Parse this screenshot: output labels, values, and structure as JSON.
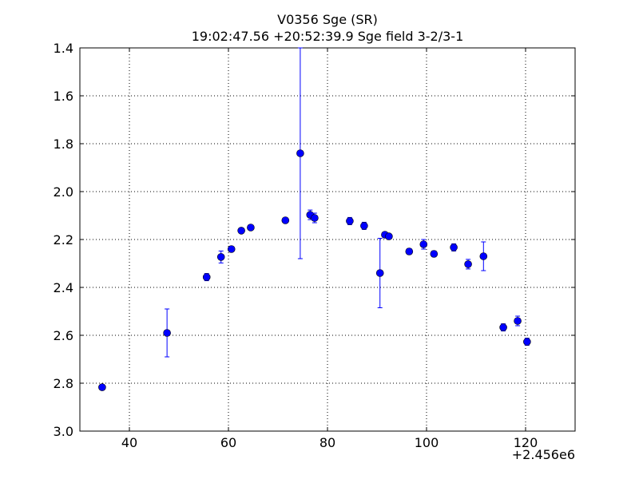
{
  "chart_data": {
    "type": "scatter",
    "title": "V0356 Sge (SR)",
    "subtitle": "19:02:47.56 +20:52:39.9 Sge field 3-2/3-1",
    "x_offset_label": "+2.456e6",
    "xlim": [
      30,
      130
    ],
    "ylim": [
      1.4,
      3.0
    ],
    "y_inverted": true,
    "grid": true,
    "xticks": [
      40,
      60,
      80,
      100,
      120
    ],
    "yticks": [
      1.4,
      1.6,
      1.8,
      {
        "value": 2,
        "label": "2.0"
      },
      2.2,
      2.4,
      2.6,
      2.8,
      {
        "value": 3,
        "label": "3.0"
      }
    ],
    "series": [
      {
        "color": "#0000ff",
        "x": [
          34.5,
          47.6,
          55.6,
          58.5,
          60.6,
          62.6,
          64.5,
          71.5,
          74.5,
          76.5,
          77.4,
          84.5,
          87.4,
          90.6,
          91.6,
          92.4,
          96.5,
          99.4,
          101.5,
          105.5,
          108.4,
          111.5,
          115.5,
          118.4,
          120.3
        ],
        "values": [
          2.817,
          2.59,
          2.357,
          2.273,
          2.24,
          2.163,
          2.15,
          2.12,
          1.84,
          2.097,
          2.11,
          2.123,
          2.143,
          2.34,
          2.18,
          2.187,
          2.25,
          2.22,
          2.26,
          2.233,
          2.303,
          2.27,
          2.567,
          2.54,
          2.627
        ],
        "errors": [
          0.01,
          0.1,
          0.015,
          0.025,
          0.01,
          0.01,
          0.01,
          0.008,
          0.44,
          0.02,
          0.02,
          0.015,
          0.015,
          0.145,
          0.01,
          0.01,
          0.012,
          0.02,
          0.012,
          0.015,
          0.02,
          0.06,
          0.015,
          0.02,
          0.015
        ]
      }
    ]
  }
}
